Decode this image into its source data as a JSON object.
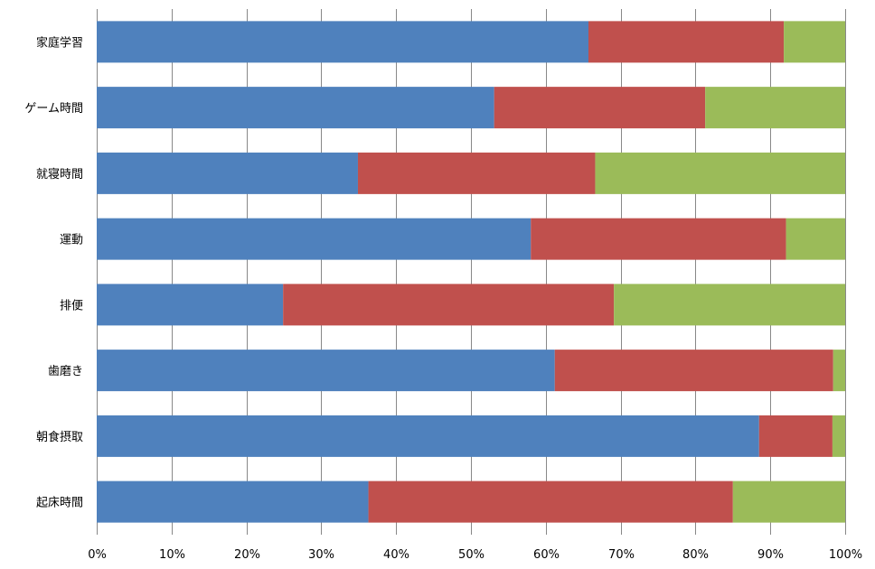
{
  "chart_data": {
    "type": "bar",
    "orientation": "horizontal",
    "stacked": "percent",
    "categories": [
      "家庭学習",
      "ゲーム時間",
      "就寝時間",
      "運動",
      "排便",
      "歯磨き",
      "朝食摂取",
      "起床時間"
    ],
    "series": [
      {
        "color": "#4F81BD",
        "values": [
          65.7,
          53.1,
          34.9,
          58.0,
          24.9,
          61.2,
          88.5,
          36.3
        ]
      },
      {
        "color": "#C0504D",
        "values": [
          26.1,
          28.2,
          31.7,
          34.1,
          44.2,
          37.2,
          9.8,
          48.7
        ]
      },
      {
        "color": "#9BBB59",
        "values": [
          8.2,
          18.7,
          33.4,
          7.9,
          30.9,
          1.6,
          1.7,
          15.0
        ]
      }
    ],
    "xlim": [
      0,
      100
    ],
    "x_ticks": [
      "0%",
      "10%",
      "20%",
      "30%",
      "40%",
      "50%",
      "60%",
      "70%",
      "80%",
      "90%",
      "100%"
    ],
    "grid": "vertical",
    "legend": "none",
    "title": "",
    "xlabel": "",
    "ylabel": ""
  }
}
